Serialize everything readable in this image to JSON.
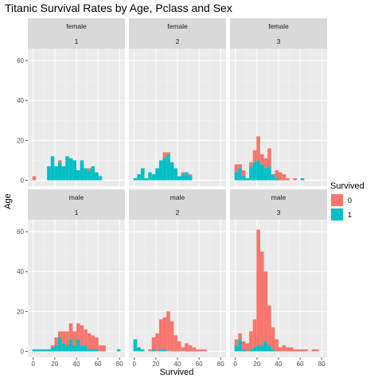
{
  "chart_data": {
    "type": "bar",
    "title": "Titanic Survival Rates by Age, Pclass and Sex",
    "xlabel": "Survived",
    "ylabel": "Age",
    "xlim": [
      -5,
      85
    ],
    "ylim": [
      -3,
      66
    ],
    "x_ticks": [
      0,
      20,
      40,
      60,
      80
    ],
    "y_ticks": [
      0,
      20,
      40,
      60
    ],
    "bin_width": 3.4,
    "grid": true,
    "legend": {
      "title": "Survived",
      "position": "right",
      "entries": [
        {
          "label": "0",
          "color": "#F8766D"
        },
        {
          "label": "1",
          "color": "#00BFC4"
        }
      ]
    },
    "facet_rows": [
      "female",
      "male"
    ],
    "facet_cols": [
      "1",
      "2",
      "3"
    ],
    "panels": [
      {
        "sex": "female",
        "pclass": "1",
        "bars": [
          {
            "x": 0.9,
            "died": 2,
            "survived": 0
          },
          {
            "x": 14.5,
            "died": 0,
            "survived": 7
          },
          {
            "x": 17.9,
            "died": 0,
            "survived": 12
          },
          {
            "x": 21.3,
            "died": 0,
            "survived": 7
          },
          {
            "x": 24.7,
            "died": 1,
            "survived": 9
          },
          {
            "x": 28.1,
            "died": 0,
            "survived": 7
          },
          {
            "x": 31.5,
            "died": 0,
            "survived": 12
          },
          {
            "x": 34.9,
            "died": 0,
            "survived": 11
          },
          {
            "x": 38.3,
            "died": 0,
            "survived": 10
          },
          {
            "x": 41.7,
            "died": 0,
            "survived": 5
          },
          {
            "x": 45.1,
            "died": 0,
            "survived": 10
          },
          {
            "x": 48.5,
            "died": 0,
            "survived": 6
          },
          {
            "x": 51.9,
            "died": 1,
            "survived": 5
          },
          {
            "x": 55.3,
            "died": 0,
            "survived": 7
          },
          {
            "x": 58.7,
            "died": 0,
            "survived": 4
          },
          {
            "x": 62.1,
            "died": 0,
            "survived": 2
          }
        ]
      },
      {
        "sex": "female",
        "pclass": "2",
        "bars": [
          {
            "x": 0.9,
            "died": 0,
            "survived": 1
          },
          {
            "x": 4.3,
            "died": 0,
            "survived": 3
          },
          {
            "x": 7.7,
            "died": 0,
            "survived": 6
          },
          {
            "x": 11.1,
            "died": 0,
            "survived": 1
          },
          {
            "x": 14.5,
            "died": 0,
            "survived": 4
          },
          {
            "x": 17.9,
            "died": 0,
            "survived": 3
          },
          {
            "x": 21.3,
            "died": 0,
            "survived": 6
          },
          {
            "x": 24.7,
            "died": 0,
            "survived": 10
          },
          {
            "x": 28.1,
            "died": 3,
            "survived": 11
          },
          {
            "x": 31.5,
            "died": 1,
            "survived": 13
          },
          {
            "x": 34.9,
            "died": 0,
            "survived": 9
          },
          {
            "x": 38.3,
            "died": 0,
            "survived": 6
          },
          {
            "x": 41.7,
            "died": 0,
            "survived": 2
          },
          {
            "x": 45.1,
            "died": 1,
            "survived": 3
          },
          {
            "x": 48.5,
            "died": 0,
            "survived": 4
          },
          {
            "x": 51.9,
            "died": 1,
            "survived": 2
          }
        ]
      },
      {
        "sex": "female",
        "pclass": "3",
        "bars": [
          {
            "x": 0.9,
            "died": 4,
            "survived": 4
          },
          {
            "x": 4.3,
            "died": 2,
            "survived": 6
          },
          {
            "x": 7.7,
            "died": 3,
            "survived": 2
          },
          {
            "x": 11.1,
            "died": 0,
            "survived": 1
          },
          {
            "x": 14.5,
            "died": 2,
            "survived": 7
          },
          {
            "x": 17.9,
            "died": 6,
            "survived": 9
          },
          {
            "x": 21.3,
            "died": 12,
            "survived": 10
          },
          {
            "x": 24.7,
            "died": 5,
            "survived": 8
          },
          {
            "x": 28.1,
            "died": 5,
            "survived": 6
          },
          {
            "x": 31.5,
            "died": 9,
            "survived": 7
          },
          {
            "x": 34.9,
            "died": 0,
            "survived": 3
          },
          {
            "x": 38.3,
            "died": 4,
            "survived": 1
          },
          {
            "x": 41.7,
            "died": 4,
            "survived": 0
          },
          {
            "x": 45.1,
            "died": 3,
            "survived": 0
          },
          {
            "x": 48.5,
            "died": 1,
            "survived": 0
          },
          {
            "x": 55.3,
            "died": 1,
            "survived": 0
          },
          {
            "x": 62.1,
            "died": 0,
            "survived": 1
          }
        ]
      },
      {
        "sex": "male",
        "pclass": "1",
        "bars": [
          {
            "x": 0.9,
            "died": 0,
            "survived": 1
          },
          {
            "x": 4.3,
            "died": 0,
            "survived": 1
          },
          {
            "x": 7.7,
            "died": 0,
            "survived": 1
          },
          {
            "x": 11.1,
            "died": 0,
            "survived": 1
          },
          {
            "x": 14.5,
            "died": 0,
            "survived": 1
          },
          {
            "x": 17.9,
            "died": 1,
            "survived": 2
          },
          {
            "x": 21.3,
            "died": 4,
            "survived": 3
          },
          {
            "x": 24.7,
            "died": 3,
            "survived": 7
          },
          {
            "x": 28.1,
            "died": 6,
            "survived": 4
          },
          {
            "x": 31.5,
            "died": 7,
            "survived": 3
          },
          {
            "x": 34.9,
            "died": 8,
            "survived": 6
          },
          {
            "x": 38.3,
            "died": 7,
            "survived": 3
          },
          {
            "x": 41.7,
            "died": 8,
            "survived": 6
          },
          {
            "x": 45.1,
            "died": 10,
            "survived": 3
          },
          {
            "x": 48.5,
            "died": 8,
            "survived": 3
          },
          {
            "x": 51.9,
            "died": 8,
            "survived": 1
          },
          {
            "x": 55.3,
            "died": 7,
            "survived": 1
          },
          {
            "x": 58.7,
            "died": 6,
            "survived": 1
          },
          {
            "x": 62.1,
            "died": 3,
            "survived": 0
          },
          {
            "x": 65.5,
            "died": 3,
            "survived": 0
          },
          {
            "x": 68.9,
            "died": 0,
            "survived": 0
          },
          {
            "x": 72.3,
            "died": 0,
            "survived": 0
          },
          {
            "x": 75.7,
            "died": 0,
            "survived": 0
          },
          {
            "x": 79.1,
            "died": 0,
            "survived": 1
          }
        ]
      },
      {
        "sex": "male",
        "pclass": "2",
        "bars": [
          {
            "x": 0.9,
            "died": 0,
            "survived": 6
          },
          {
            "x": 4.3,
            "died": 0,
            "survived": 2
          },
          {
            "x": 7.7,
            "died": 0,
            "survived": 1
          },
          {
            "x": 11.1,
            "died": 0,
            "survived": 0
          },
          {
            "x": 14.5,
            "died": 1,
            "survived": 0
          },
          {
            "x": 17.9,
            "died": 6,
            "survived": 1
          },
          {
            "x": 21.3,
            "died": 9,
            "survived": 0
          },
          {
            "x": 24.7,
            "died": 15,
            "survived": 1
          },
          {
            "x": 28.1,
            "died": 16,
            "survived": 1
          },
          {
            "x": 31.5,
            "died": 20,
            "survived": 0
          },
          {
            "x": 34.9,
            "died": 15,
            "survived": 0
          },
          {
            "x": 38.3,
            "died": 8,
            "survived": 0
          },
          {
            "x": 41.7,
            "died": 5,
            "survived": 0
          },
          {
            "x": 45.1,
            "died": 2,
            "survived": 0
          },
          {
            "x": 48.5,
            "died": 4,
            "survived": 0
          },
          {
            "x": 51.9,
            "died": 3,
            "survived": 0
          },
          {
            "x": 55.3,
            "died": 2,
            "survived": 0
          },
          {
            "x": 58.7,
            "died": 1,
            "survived": 0
          },
          {
            "x": 62.1,
            "died": 1,
            "survived": 0
          },
          {
            "x": 65.5,
            "died": 1,
            "survived": 0
          }
        ]
      },
      {
        "sex": "male",
        "pclass": "3",
        "bars": [
          {
            "x": 0.9,
            "died": 3,
            "survived": 3
          },
          {
            "x": 4.3,
            "died": 3,
            "survived": 6
          },
          {
            "x": 7.7,
            "died": 4,
            "survived": 1
          },
          {
            "x": 11.1,
            "died": 4,
            "survived": 0
          },
          {
            "x": 14.5,
            "died": 9,
            "survived": 1
          },
          {
            "x": 17.9,
            "died": 14,
            "survived": 2
          },
          {
            "x": 21.3,
            "died": 58,
            "survived": 3
          },
          {
            "x": 24.7,
            "died": 47,
            "survived": 3
          },
          {
            "x": 28.1,
            "died": 35,
            "survived": 5
          },
          {
            "x": 31.5,
            "died": 20,
            "survived": 3
          },
          {
            "x": 34.9,
            "died": 11,
            "survived": 1
          },
          {
            "x": 38.3,
            "died": 6,
            "survived": 0
          },
          {
            "x": 41.7,
            "died": 2,
            "survived": 0
          },
          {
            "x": 45.1,
            "died": 3,
            "survived": 0
          },
          {
            "x": 48.5,
            "died": 2,
            "survived": 0
          },
          {
            "x": 51.9,
            "died": 2,
            "survived": 0
          },
          {
            "x": 55.3,
            "died": 1,
            "survived": 0
          },
          {
            "x": 58.7,
            "died": 1,
            "survived": 0
          },
          {
            "x": 62.1,
            "died": 1,
            "survived": 0
          },
          {
            "x": 65.5,
            "died": 1,
            "survived": 0
          },
          {
            "x": 68.9,
            "died": 0,
            "survived": 0
          },
          {
            "x": 72.3,
            "died": 1,
            "survived": 0
          },
          {
            "x": 75.7,
            "died": 1,
            "survived": 0
          }
        ]
      }
    ]
  }
}
